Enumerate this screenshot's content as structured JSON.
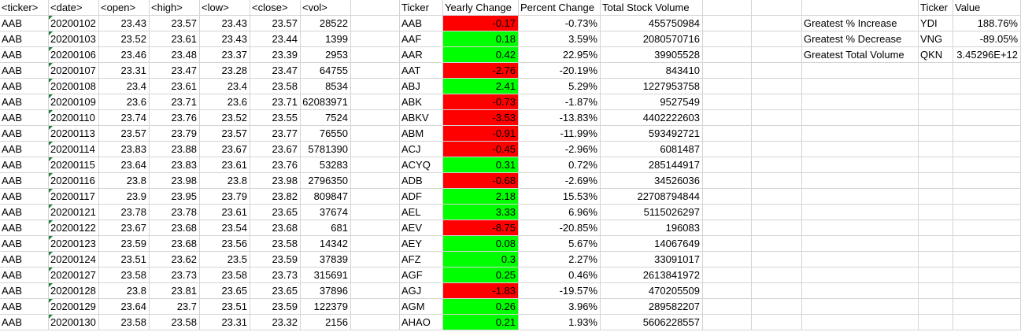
{
  "raw_headers": [
    "<ticker>",
    "<date>",
    "<open>",
    "<high>",
    "<low>",
    "<close>",
    "<vol>"
  ],
  "raw_rows": [
    [
      "AAB",
      "20200102",
      "23.43",
      "23.57",
      "23.43",
      "23.57",
      "28522"
    ],
    [
      "AAB",
      "20200103",
      "23.52",
      "23.61",
      "23.43",
      "23.44",
      "1399"
    ],
    [
      "AAB",
      "20200106",
      "23.46",
      "23.48",
      "23.37",
      "23.39",
      "2953"
    ],
    [
      "AAB",
      "20200107",
      "23.31",
      "23.47",
      "23.28",
      "23.47",
      "64755"
    ],
    [
      "AAB",
      "20200108",
      "23.4",
      "23.61",
      "23.4",
      "23.58",
      "8534"
    ],
    [
      "AAB",
      "20200109",
      "23.6",
      "23.71",
      "23.6",
      "23.71",
      "62083971"
    ],
    [
      "AAB",
      "20200110",
      "23.74",
      "23.76",
      "23.52",
      "23.55",
      "7524"
    ],
    [
      "AAB",
      "20200113",
      "23.57",
      "23.79",
      "23.57",
      "23.77",
      "76550"
    ],
    [
      "AAB",
      "20200114",
      "23.83",
      "23.88",
      "23.67",
      "23.67",
      "5781390"
    ],
    [
      "AAB",
      "20200115",
      "23.64",
      "23.83",
      "23.61",
      "23.76",
      "53283"
    ],
    [
      "AAB",
      "20200116",
      "23.8",
      "23.98",
      "23.8",
      "23.98",
      "2796350"
    ],
    [
      "AAB",
      "20200117",
      "23.9",
      "23.95",
      "23.79",
      "23.82",
      "809847"
    ],
    [
      "AAB",
      "20200121",
      "23.78",
      "23.78",
      "23.61",
      "23.65",
      "37674"
    ],
    [
      "AAB",
      "20200122",
      "23.67",
      "23.68",
      "23.54",
      "23.68",
      "681"
    ],
    [
      "AAB",
      "20200123",
      "23.59",
      "23.68",
      "23.56",
      "23.58",
      "14342"
    ],
    [
      "AAB",
      "20200124",
      "23.51",
      "23.62",
      "23.5",
      "23.59",
      "37839"
    ],
    [
      "AAB",
      "20200127",
      "23.58",
      "23.73",
      "23.58",
      "23.73",
      "315691"
    ],
    [
      "AAB",
      "20200128",
      "23.8",
      "23.81",
      "23.65",
      "23.65",
      "37896"
    ],
    [
      "AAB",
      "20200129",
      "23.64",
      "23.7",
      "23.51",
      "23.59",
      "122379"
    ],
    [
      "AAB",
      "20200130",
      "23.58",
      "23.58",
      "23.31",
      "23.32",
      "2156"
    ]
  ],
  "summary_headers": [
    "Ticker",
    "Yearly Change",
    "Percent Change",
    "Total Stock Volume"
  ],
  "summary_rows": [
    [
      "AAB",
      "-0.17",
      "-0.73%",
      "455750984"
    ],
    [
      "AAF",
      "0.18",
      "3.59%",
      "2080570716"
    ],
    [
      "AAR",
      "0.42",
      "22.95%",
      "39905528"
    ],
    [
      "AAT",
      "-2.76",
      "-20.19%",
      "843410"
    ],
    [
      "ABJ",
      "2.41",
      "5.29%",
      "1227953758"
    ],
    [
      "ABK",
      "-0.73",
      "-1.87%",
      "9527549"
    ],
    [
      "ABKV",
      "-3.53",
      "-13.83%",
      "4402222603"
    ],
    [
      "ABM",
      "-0.91",
      "-11.99%",
      "593492721"
    ],
    [
      "ACJ",
      "-0.45",
      "-2.96%",
      "6081487"
    ],
    [
      "ACYQ",
      "0.31",
      "0.72%",
      "285144917"
    ],
    [
      "ADB",
      "-0.68",
      "-2.69%",
      "34526036"
    ],
    [
      "ADF",
      "2.18",
      "15.53%",
      "22708794844"
    ],
    [
      "AEL",
      "3.33",
      "6.96%",
      "5115026297"
    ],
    [
      "AEV",
      "-8.75",
      "-20.85%",
      "196083"
    ],
    [
      "AEY",
      "0.08",
      "5.67%",
      "14067649"
    ],
    [
      "AFZ",
      "0.3",
      "2.27%",
      "33091017"
    ],
    [
      "AGF",
      "0.25",
      "0.46%",
      "2613841972"
    ],
    [
      "AGJ",
      "-1.83",
      "-19.57%",
      "470205509"
    ],
    [
      "AGM",
      "0.26",
      "3.96%",
      "289582207"
    ],
    [
      "AHAO",
      "0.21",
      "1.93%",
      "5606228557"
    ]
  ],
  "greatest_headers": [
    "Ticker",
    "Value"
  ],
  "greatest_rows": [
    [
      "Greatest % Increase",
      "YDI",
      "188.76%"
    ],
    [
      "Greatest % Decrease",
      "VNG",
      "-89.05%"
    ],
    [
      "Greatest Total Volume",
      "QKN",
      "3.45296E+12"
    ]
  ],
  "colors": {
    "positive": "#00ff00",
    "negative": "#ff0000",
    "gridline": "#d4d4d4",
    "text_warning_triangle": "#1e7d3c"
  }
}
